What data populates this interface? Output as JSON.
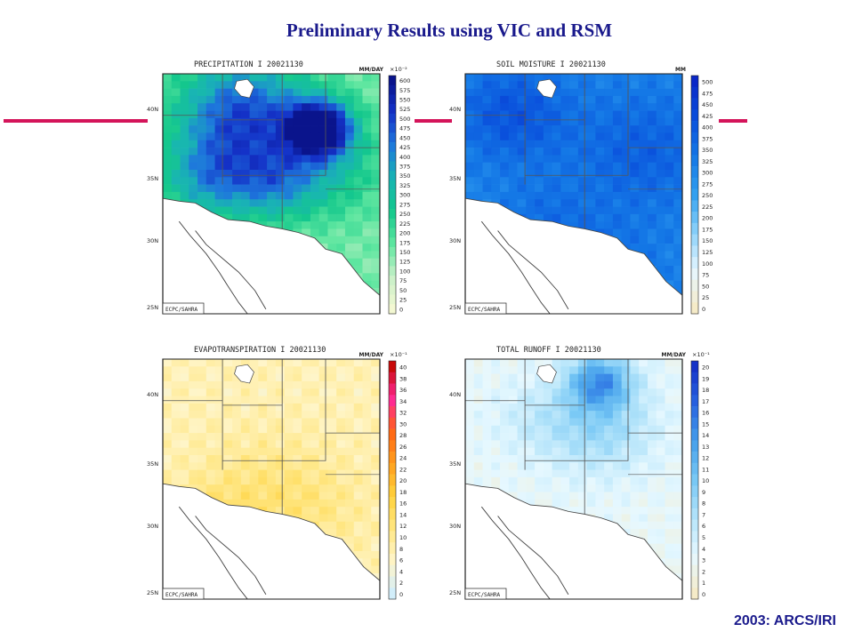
{
  "slide": {
    "title": "Preliminary Results using VIC and RSM",
    "footer": "2003: ARCS/IRI"
  },
  "colors": {
    "title": "#1a1a8c",
    "accent_bar": "#d4145a"
  },
  "panels": [
    {
      "id": "precipitation",
      "heading": "PRECIPITATION I 20021130",
      "units": "MM/DAY",
      "multiplier": "×10⁻²",
      "credit": "ECPC/SAHRA",
      "lat_labels": [
        "40N",
        "35N",
        "30N",
        "25N"
      ],
      "scale_labels": [
        "600",
        "575",
        "550",
        "525",
        "500",
        "475",
        "450",
        "425",
        "400",
        "375",
        "350",
        "325",
        "300",
        "275",
        "250",
        "225",
        "200",
        "175",
        "150",
        "125",
        "100",
        "75",
        "50",
        "25",
        "0"
      ],
      "palette": "green-blue"
    },
    {
      "id": "soil-moisture",
      "heading": "SOIL MOISTURE I 20021130",
      "units": "MM",
      "multiplier": "",
      "credit": "ECPC/SAHRA",
      "lat_labels": [
        "40N",
        "35N",
        "30N",
        "25N"
      ],
      "scale_labels": [
        "500",
        "475",
        "450",
        "425",
        "400",
        "375",
        "350",
        "325",
        "300",
        "275",
        "250",
        "225",
        "200",
        "175",
        "150",
        "125",
        "100",
        "75",
        "50",
        "25",
        "0"
      ],
      "palette": "blue"
    },
    {
      "id": "evapotranspiration",
      "heading": "EVAPOTRANSPIRATION I 20021130",
      "units": "MM/DAY",
      "multiplier": "×10⁻¹",
      "credit": "ECPC/SAHRA",
      "lat_labels": [
        "40N",
        "35N",
        "30N",
        "25N"
      ],
      "scale_labels": [
        "40",
        "38",
        "36",
        "34",
        "32",
        "30",
        "28",
        "26",
        "24",
        "22",
        "20",
        "18",
        "16",
        "14",
        "12",
        "10",
        "8",
        "6",
        "4",
        "2",
        "0"
      ],
      "palette": "yellow-red"
    },
    {
      "id": "total-runoff",
      "heading": "TOTAL RUNOFF I 20021130",
      "units": "MM/DAY",
      "multiplier": "×10⁻¹",
      "credit": "ECPC/SAHRA",
      "lat_labels": [
        "40N",
        "35N",
        "30N",
        "25N"
      ],
      "scale_labels": [
        "20",
        "19",
        "18",
        "17",
        "16",
        "15",
        "14",
        "13",
        "12",
        "11",
        "10",
        "9",
        "8",
        "7",
        "6",
        "5",
        "4",
        "3",
        "2",
        "1",
        "0"
      ],
      "palette": "lightblue"
    }
  ]
}
